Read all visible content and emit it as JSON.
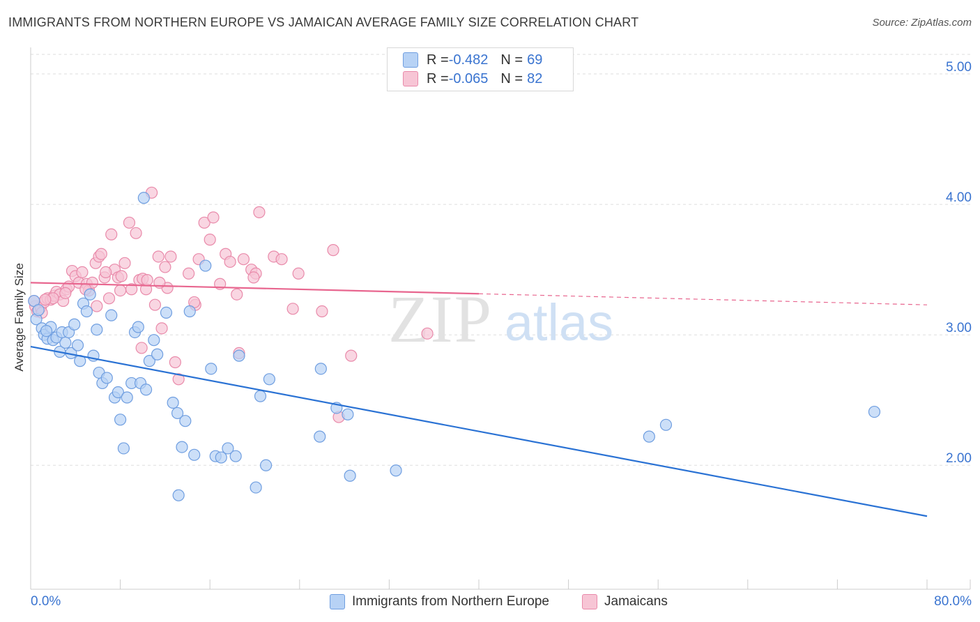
{
  "title": "IMMIGRANTS FROM NORTHERN EUROPE VS JAMAICAN AVERAGE FAMILY SIZE CORRELATION CHART",
  "source": "Source: ZipAtlas.com",
  "watermark": {
    "zip": "ZIP",
    "atlas": "atlas"
  },
  "legend_top": {
    "rows": [
      {
        "r_label": "R = ",
        "r_value": "-0.482",
        "n_label": "N = ",
        "n_value": "69"
      },
      {
        "r_label": "R = ",
        "r_value": "-0.065",
        "n_label": "N = ",
        "n_value": "82"
      }
    ]
  },
  "legend_bottom": [
    "Immigrants from Northern Europe",
    "Jamaicans"
  ],
  "colors": {
    "blue_fill": "#b7d2f5",
    "blue_stroke": "#6f9ee0",
    "blue_line": "#2a72d4",
    "pink_fill": "#f7c5d5",
    "pink_stroke": "#e98aaa",
    "pink_line": "#e8668f",
    "tick_text": "#3a74d0",
    "grid": "#dddddd"
  },
  "chart_data": {
    "type": "scatter",
    "title": "IMMIGRANTS FROM NORTHERN EUROPE VS JAMAICAN AVERAGE FAMILY SIZE CORRELATION CHART",
    "xlabel": "",
    "ylabel": "Average Family Size",
    "xlim": [
      0,
      80
    ],
    "ylim": [
      1.05,
      5.15
    ],
    "x_tick_labels": [
      "0.0%",
      "80.0%"
    ],
    "y_ticks": [
      2.0,
      3.0,
      4.0,
      5.0
    ],
    "y_tick_labels": [
      "2.00",
      "3.00",
      "4.00",
      "5.00"
    ],
    "grid": true,
    "legend_position": "top-center",
    "series": [
      {
        "name": "Immigrants from Northern Europe",
        "color": "#6f9ee0",
        "trend": {
          "x0": 0,
          "y0": 2.91,
          "x1": 80,
          "y1": 1.61,
          "dashed_after": null
        },
        "points": [
          [
            0.3,
            3.26
          ],
          [
            0.5,
            3.12
          ],
          [
            1.0,
            3.05
          ],
          [
            1.2,
            3.0
          ],
          [
            1.5,
            2.97
          ],
          [
            1.8,
            3.06
          ],
          [
            2.0,
            2.96
          ],
          [
            2.3,
            2.98
          ],
          [
            2.6,
            2.87
          ],
          [
            2.8,
            3.02
          ],
          [
            3.1,
            2.94
          ],
          [
            3.4,
            3.02
          ],
          [
            3.6,
            2.86
          ],
          [
            3.9,
            3.08
          ],
          [
            4.2,
            2.92
          ],
          [
            4.4,
            2.8
          ],
          [
            4.7,
            3.24
          ],
          [
            5.0,
            3.18
          ],
          [
            5.3,
            3.31
          ],
          [
            5.6,
            2.84
          ],
          [
            5.9,
            3.04
          ],
          [
            6.1,
            2.71
          ],
          [
            6.4,
            2.63
          ],
          [
            6.8,
            2.67
          ],
          [
            7.2,
            3.15
          ],
          [
            7.5,
            2.52
          ],
          [
            7.8,
            2.56
          ],
          [
            8.0,
            2.35
          ],
          [
            8.3,
            2.13
          ],
          [
            8.6,
            2.52
          ],
          [
            9.0,
            2.63
          ],
          [
            9.3,
            3.02
          ],
          [
            9.6,
            3.06
          ],
          [
            9.8,
            2.63
          ],
          [
            10.1,
            4.05
          ],
          [
            10.3,
            2.58
          ],
          [
            10.6,
            2.8
          ],
          [
            11.0,
            2.96
          ],
          [
            11.3,
            2.85
          ],
          [
            12.1,
            3.17
          ],
          [
            12.7,
            2.48
          ],
          [
            13.1,
            2.4
          ],
          [
            13.5,
            2.14
          ],
          [
            13.8,
            2.34
          ],
          [
            14.2,
            3.18
          ],
          [
            14.6,
            2.08
          ],
          [
            15.6,
            3.53
          ],
          [
            16.1,
            2.74
          ],
          [
            16.5,
            2.07
          ],
          [
            17.0,
            2.06
          ],
          [
            17.6,
            2.13
          ],
          [
            18.3,
            2.07
          ],
          [
            18.6,
            2.84
          ],
          [
            20.1,
            1.83
          ],
          [
            20.5,
            2.53
          ],
          [
            21.0,
            2.0
          ],
          [
            21.3,
            2.66
          ],
          [
            25.9,
            2.74
          ],
          [
            25.8,
            2.22
          ],
          [
            27.3,
            2.44
          ],
          [
            28.3,
            2.39
          ],
          [
            28.5,
            1.92
          ],
          [
            32.6,
            1.96
          ],
          [
            55.2,
            2.22
          ],
          [
            56.7,
            2.31
          ],
          [
            75.3,
            2.41
          ],
          [
            13.2,
            1.77
          ],
          [
            0.7,
            3.19
          ],
          [
            1.4,
            3.03
          ]
        ]
      },
      {
        "name": "Jamaicans",
        "color": "#e98aaa",
        "trend": {
          "x0": 0,
          "y0": 3.4,
          "x1": 80,
          "y1": 3.23,
          "dashed_after": 40
        },
        "points": [
          [
            0.4,
            3.22
          ],
          [
            0.6,
            3.18
          ],
          [
            0.9,
            3.21
          ],
          [
            1.2,
            3.25
          ],
          [
            1.5,
            3.28
          ],
          [
            1.8,
            3.27
          ],
          [
            2.1,
            3.3
          ],
          [
            2.3,
            3.33
          ],
          [
            2.6,
            3.31
          ],
          [
            2.9,
            3.26
          ],
          [
            3.2,
            3.35
          ],
          [
            3.4,
            3.37
          ],
          [
            3.7,
            3.49
          ],
          [
            4.0,
            3.45
          ],
          [
            4.3,
            3.4
          ],
          [
            4.6,
            3.48
          ],
          [
            5.0,
            3.39
          ],
          [
            5.2,
            3.34
          ],
          [
            5.5,
            3.4
          ],
          [
            5.8,
            3.55
          ],
          [
            6.1,
            3.6
          ],
          [
            6.3,
            3.62
          ],
          [
            6.6,
            3.44
          ],
          [
            7.0,
            3.28
          ],
          [
            7.2,
            3.77
          ],
          [
            7.5,
            3.5
          ],
          [
            7.8,
            3.44
          ],
          [
            8.1,
            3.45
          ],
          [
            8.4,
            3.55
          ],
          [
            8.8,
            3.86
          ],
          [
            9.0,
            3.35
          ],
          [
            9.4,
            3.78
          ],
          [
            9.7,
            3.42
          ],
          [
            10.0,
            3.43
          ],
          [
            10.3,
            3.35
          ],
          [
            10.8,
            4.09
          ],
          [
            11.1,
            3.23
          ],
          [
            11.4,
            3.6
          ],
          [
            11.7,
            3.05
          ],
          [
            12.0,
            3.52
          ],
          [
            12.5,
            3.6
          ],
          [
            12.9,
            2.79
          ],
          [
            13.2,
            2.66
          ],
          [
            14.1,
            3.47
          ],
          [
            14.7,
            3.23
          ],
          [
            15.0,
            3.58
          ],
          [
            15.5,
            3.86
          ],
          [
            16.0,
            3.73
          ],
          [
            16.3,
            3.9
          ],
          [
            16.9,
            3.39
          ],
          [
            17.4,
            3.62
          ],
          [
            17.8,
            3.56
          ],
          [
            18.4,
            3.31
          ],
          [
            19.0,
            3.58
          ],
          [
            19.7,
            3.5
          ],
          [
            20.1,
            3.47
          ],
          [
            20.4,
            3.94
          ],
          [
            21.7,
            3.6
          ],
          [
            22.4,
            3.58
          ],
          [
            23.4,
            3.2
          ],
          [
            23.9,
            3.47
          ],
          [
            26.0,
            3.18
          ],
          [
            27.0,
            3.65
          ],
          [
            27.5,
            2.37
          ],
          [
            28.6,
            2.84
          ],
          [
            35.4,
            3.01
          ],
          [
            10.4,
            3.42
          ],
          [
            8.0,
            3.34
          ],
          [
            12.2,
            3.36
          ],
          [
            9.9,
            2.9
          ],
          [
            5.9,
            3.22
          ],
          [
            6.7,
            3.48
          ],
          [
            11.5,
            3.4
          ],
          [
            18.6,
            2.86
          ],
          [
            19.9,
            3.44
          ],
          [
            14.6,
            3.25
          ],
          [
            3.1,
            3.32
          ],
          [
            4.9,
            3.35
          ],
          [
            2.0,
            3.28
          ],
          [
            1.3,
            3.27
          ],
          [
            0.3,
            3.26
          ],
          [
            1.0,
            3.17
          ]
        ]
      }
    ]
  }
}
